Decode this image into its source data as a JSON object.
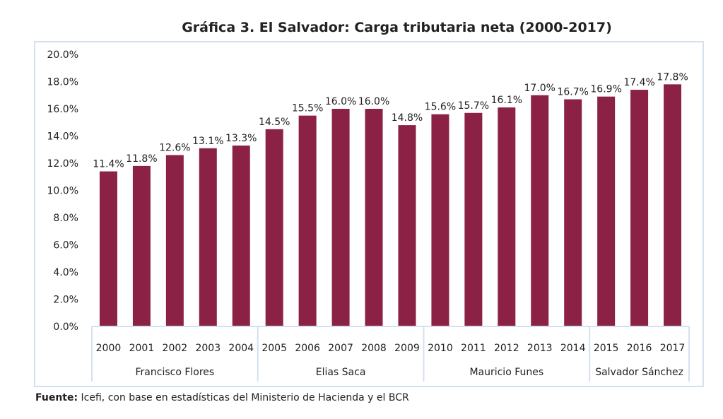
{
  "chart_data": {
    "type": "bar",
    "title": "Gráfica 3. El Salvador: Carga tributaria neta (2000-2017)",
    "categories": [
      "2000",
      "2001",
      "2002",
      "2003",
      "2004",
      "2005",
      "2006",
      "2007",
      "2008",
      "2009",
      "2010",
      "2011",
      "2012",
      "2013",
      "2014",
      "2015",
      "2016",
      "2017"
    ],
    "values": [
      11.4,
      11.8,
      12.6,
      13.1,
      13.3,
      14.5,
      15.5,
      16.0,
      16.0,
      14.8,
      15.6,
      15.7,
      16.1,
      17.0,
      16.7,
      16.9,
      17.4,
      17.8
    ],
    "data_labels": [
      "11.4%",
      "11.8%",
      "12.6%",
      "13.1%",
      "13.3%",
      "14.5%",
      "15.5%",
      "16.0%",
      "16.0%",
      "14.8%",
      "15.6%",
      "15.7%",
      "16.1%",
      "17.0%",
      "16.7%",
      "16.9%",
      "17.4%",
      "17.8%"
    ],
    "groups": [
      {
        "label": "Francisco Flores",
        "span": 5
      },
      {
        "label": "Elias Saca",
        "span": 5
      },
      {
        "label": "Mauricio Funes",
        "span": 5
      },
      {
        "label": "Salvador Sánchez",
        "span": 3
      }
    ],
    "ylim": [
      0,
      20
    ],
    "yticks": [
      "0.0%",
      "2.0%",
      "4.0%",
      "6.0%",
      "8.0%",
      "10.0%",
      "12.0%",
      "14.0%",
      "16.0%",
      "18.0%",
      "20.0%"
    ],
    "xlabel": "",
    "ylabel": "",
    "grid": false,
    "bar_color": "#8b2246",
    "frame_color": "#d5e0ee"
  },
  "source": {
    "label": "Fuente:",
    "text": " Icefi, con base en estadísticas del Ministerio de Hacienda y el BCR"
  }
}
